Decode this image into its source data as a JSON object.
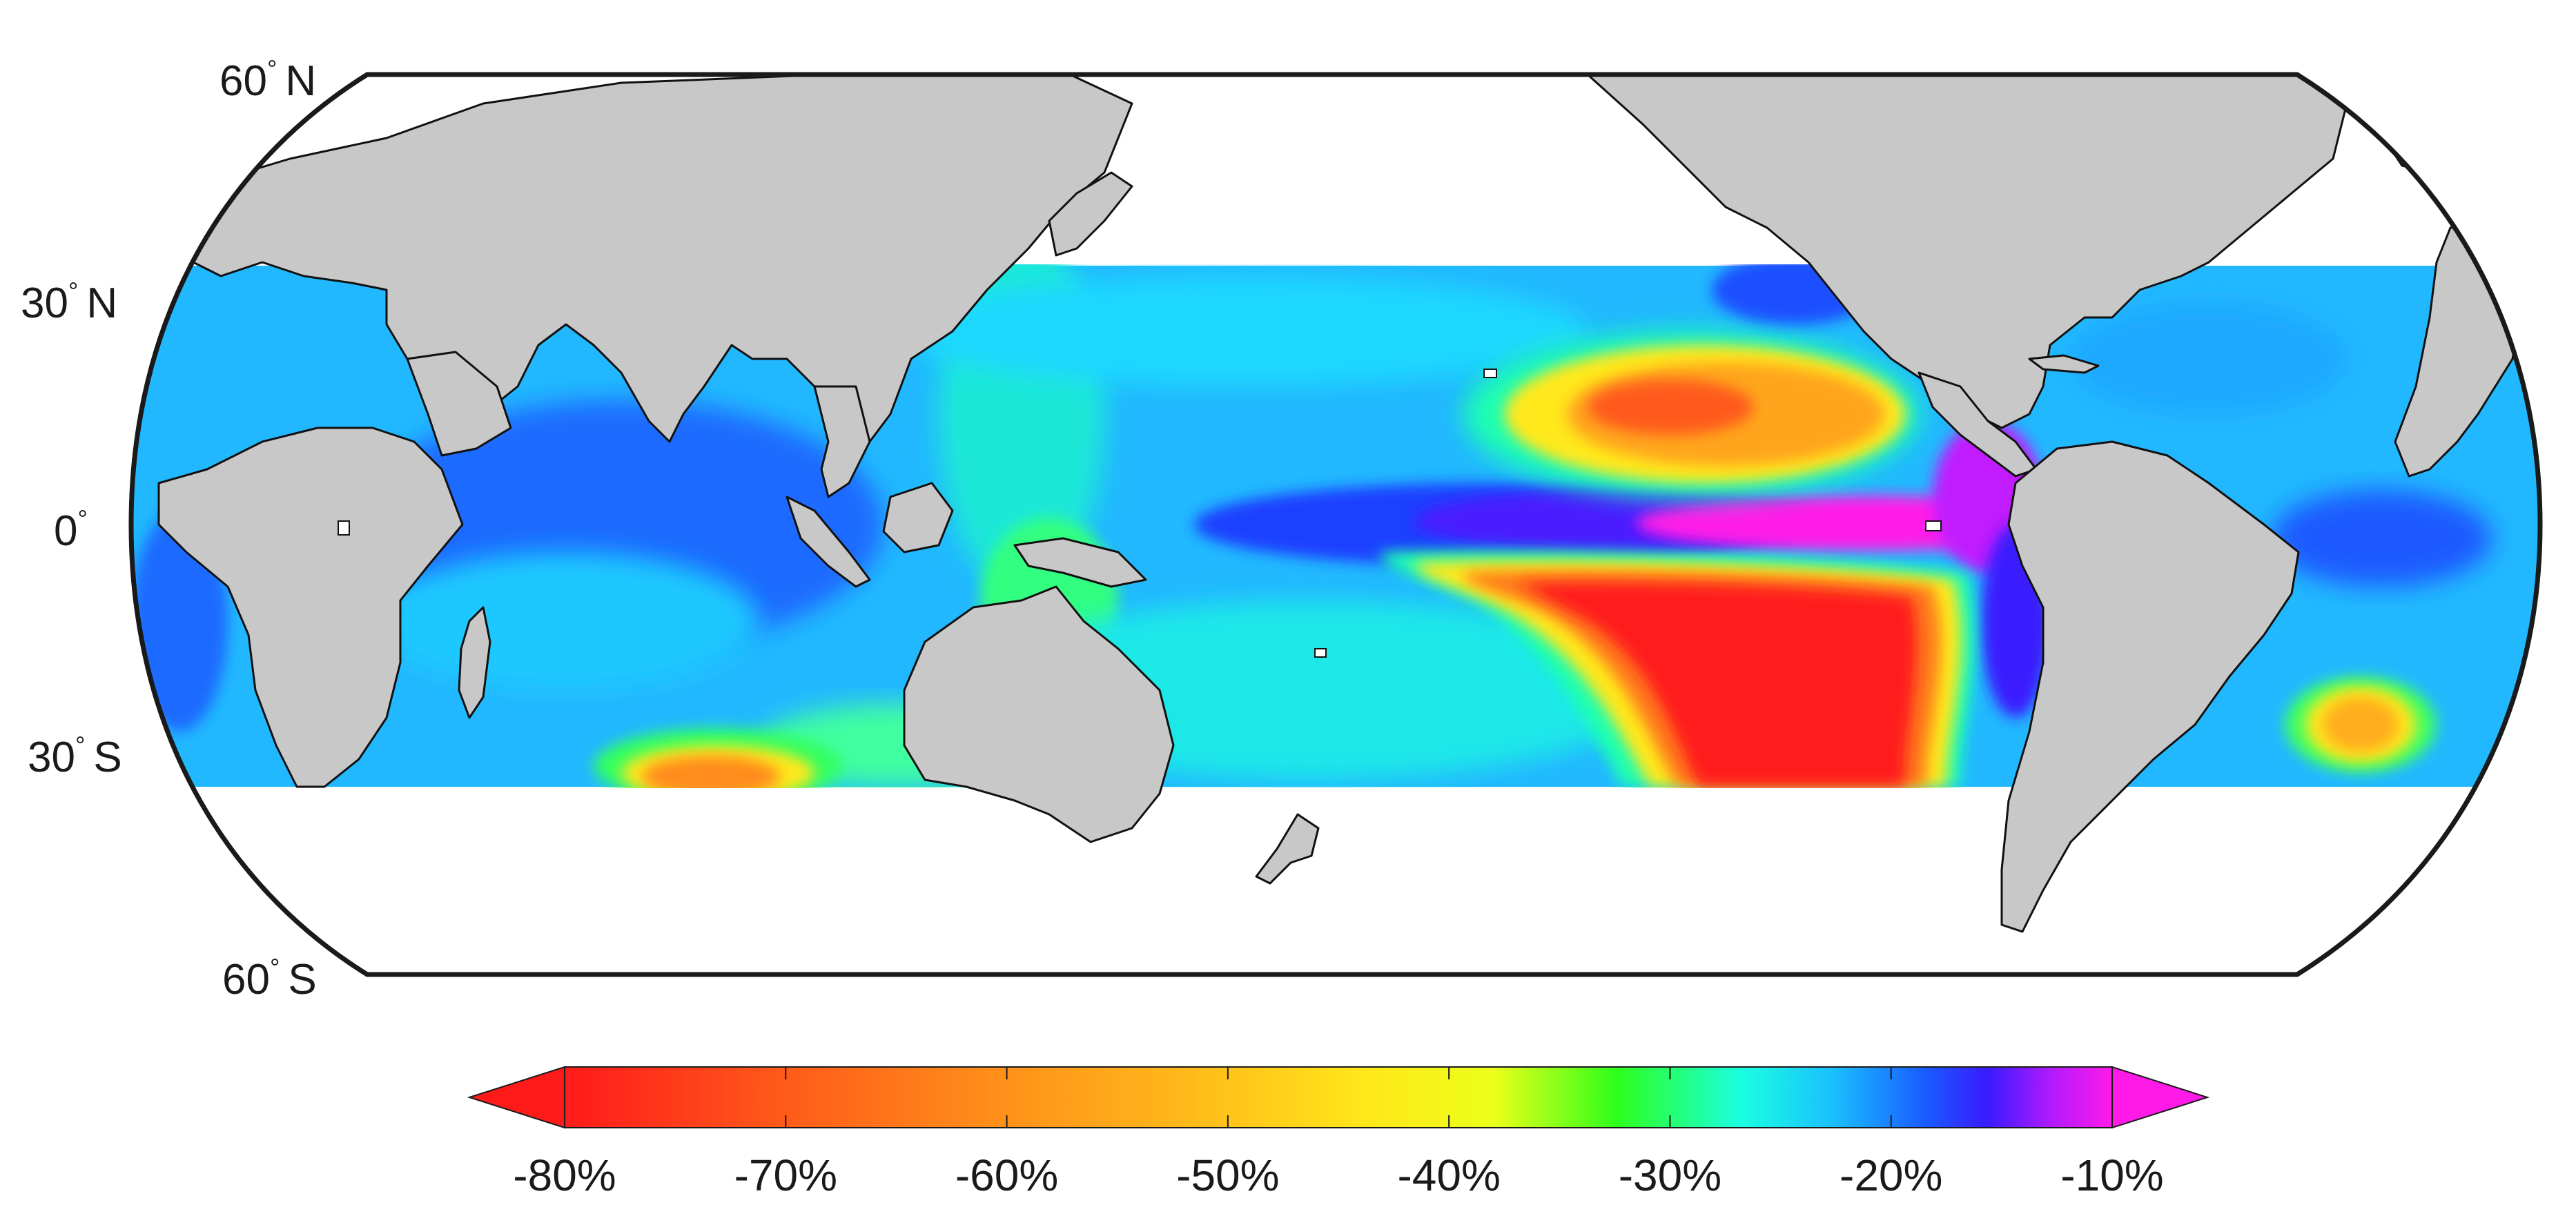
{
  "map": {
    "projection": "pseudo-cylindrical world map, Pacific-centered",
    "land_color": "#c8c8c8",
    "ocean_nodata_color": "#ffffff",
    "data_extent": "tropical oceans, approx. 30°S to 30°N",
    "latitude_labels": [
      {
        "value": "60",
        "hemisphere": "N"
      },
      {
        "value": "30",
        "hemisphere": "N"
      },
      {
        "value": "0",
        "hemisphere": ""
      },
      {
        "value": "30",
        "hemisphere": "S"
      },
      {
        "value": "60",
        "hemisphere": "S"
      }
    ],
    "notable_features": [
      "strongest decline (red, ~-80%) in SE Pacific off South America",
      "secondary decline (orange/yellow) in NE Pacific",
      "weakest change (magenta, ~-10%) along eastern equatorial Pacific cold tongue",
      "orange patch (~-55%) in South Atlantic",
      "orange patch (~-60%) in SW Indian Ocean near 30S"
    ]
  },
  "colorbar": {
    "ticks": [
      "-80%",
      "-70%",
      "-60%",
      "-50%",
      "-40%",
      "-30%",
      "-20%",
      "-10%"
    ],
    "range": [
      -80,
      -10
    ],
    "extend": "both",
    "colors": [
      "#ff1a1a",
      "#ff5a1a",
      "#ff8c1a",
      "#ffb81a",
      "#ffe81a",
      "#ecff1a",
      "#2dff1a",
      "#1affe0",
      "#1abfff",
      "#1a5aff",
      "#3a1aff",
      "#b01aff",
      "#ff1ae8"
    ]
  }
}
